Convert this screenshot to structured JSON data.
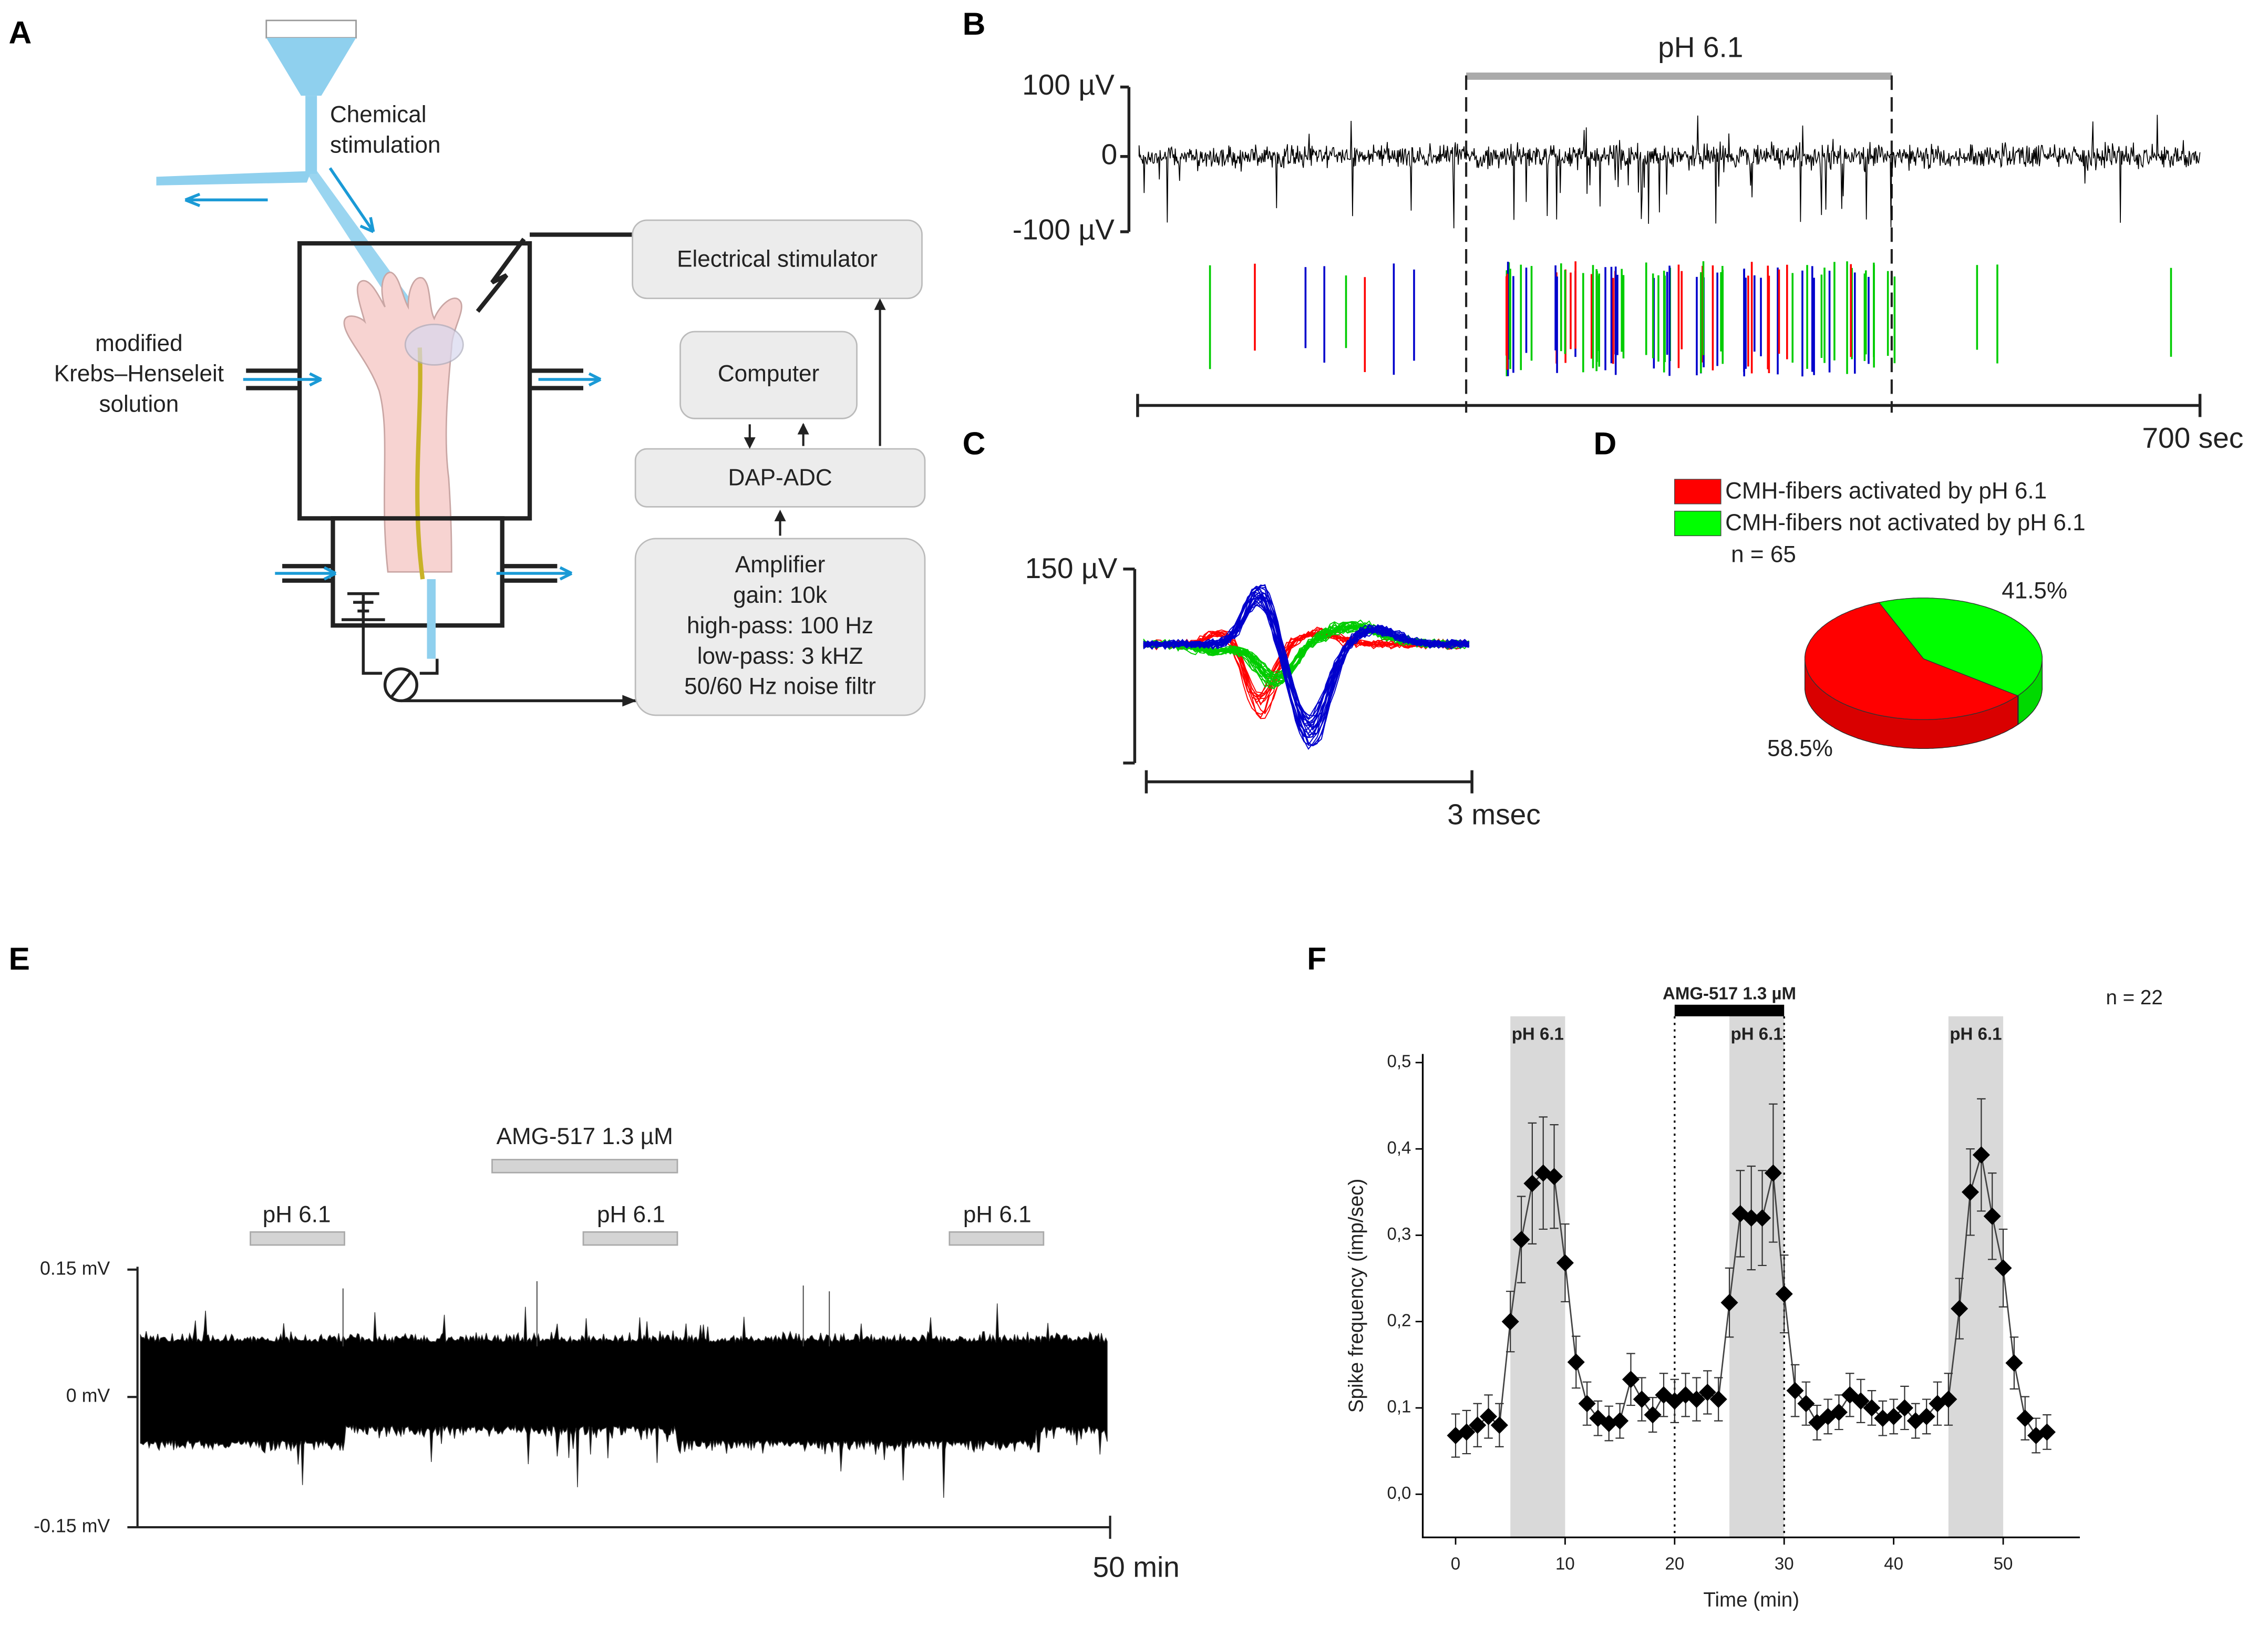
{
  "panel_a": {
    "label": "A",
    "chemical_stimulation": [
      "Chemical",
      "stimulation"
    ],
    "solution": [
      "modified",
      "Krebs–Henseleit",
      "solution"
    ],
    "electrical_stimulator": "Electrical stimulator",
    "computer": "Computer",
    "dap_adc": "DAP-ADC",
    "amplifier": [
      "Amplifier",
      "gain: 10k",
      "high-pass: 100 Hz",
      "low-pass: 3 kHZ",
      "50/60 Hz noise filtr"
    ]
  },
  "panel_b": {
    "label": "B",
    "stimulus": "pH 6.1",
    "y_labels": [
      "100 µV",
      "0",
      "-100 µV"
    ],
    "time_scale": "700 sec"
  },
  "panel_c": {
    "label": "C",
    "amplitude": "150 µV",
    "time_scale": "3 msec"
  },
  "panel_d": {
    "label": "D",
    "chart_data": {
      "type": "pie",
      "categories": [
        "CMH-fibers activated by pH 6.1",
        "CMH-fibers not activated by pH 6.1"
      ],
      "values": [
        58.5,
        41.5
      ],
      "value_labels": [
        "58.5%",
        "41.5%"
      ],
      "colors": [
        "#ff0000",
        "#00ff00"
      ],
      "annotation": "n = 65"
    }
  },
  "panel_e": {
    "label": "E",
    "drug": "AMG-517 1.3 µM",
    "stimuli": [
      "pH 6.1",
      "pH 6.1",
      "pH 6.1"
    ],
    "y_labels": [
      "0.15 mV",
      "0 mV",
      "-0.15 mV"
    ],
    "time_scale": "50 min"
  },
  "panel_f": {
    "label": "F",
    "chart_data": {
      "type": "line",
      "xlabel": "Time (min)",
      "ylabel": "Spike frequency (imp/sec)",
      "annotation": "n = 22",
      "x": [
        0,
        1,
        2,
        3,
        4,
        5,
        6,
        7,
        8,
        9,
        10,
        11,
        12,
        13,
        14,
        15,
        16,
        17,
        18,
        19,
        20,
        21,
        22,
        23,
        24,
        25,
        26,
        27,
        28,
        29,
        30,
        31,
        32,
        33,
        34,
        35,
        36,
        37,
        38,
        39,
        40,
        41,
        42,
        43,
        44,
        45,
        46,
        47,
        48,
        49,
        50,
        51,
        52,
        53,
        54
      ],
      "series": [
        {
          "color": "#000000",
          "values": [
            0.068,
            0.072,
            0.08,
            0.09,
            0.08,
            0.2,
            0.295,
            0.36,
            0.372,
            0.368,
            0.268,
            0.153,
            0.105,
            0.088,
            0.082,
            0.085,
            0.133,
            0.11,
            0.092,
            0.115,
            0.108,
            0.115,
            0.11,
            0.118,
            0.11,
            0.222,
            0.325,
            0.32,
            0.32,
            0.372,
            0.232,
            0.12,
            0.105,
            0.083,
            0.09,
            0.095,
            0.115,
            0.108,
            0.1,
            0.088,
            0.09,
            0.1,
            0.085,
            0.09,
            0.105,
            0.11,
            0.215,
            0.35,
            0.393,
            0.322,
            0.262,
            0.152,
            0.088,
            0.068,
            0.072
          ],
          "errors": [
            0.025,
            0.025,
            0.025,
            0.025,
            0.025,
            0.035,
            0.05,
            0.07,
            0.065,
            0.06,
            0.045,
            0.03,
            0.025,
            0.02,
            0.02,
            0.02,
            0.03,
            0.025,
            0.02,
            0.025,
            0.025,
            0.025,
            0.025,
            0.025,
            0.025,
            0.04,
            0.05,
            0.06,
            0.055,
            0.08,
            0.045,
            0.03,
            0.025,
            0.02,
            0.02,
            0.02,
            0.025,
            0.025,
            0.02,
            0.02,
            0.02,
            0.025,
            0.02,
            0.02,
            0.025,
            0.03,
            0.035,
            0.05,
            0.065,
            0.05,
            0.045,
            0.03,
            0.025,
            0.02,
            0.02
          ]
        }
      ],
      "xlim": [
        -3,
        57
      ],
      "ylim": [
        -0.05,
        0.51
      ],
      "xticks": [
        0,
        10,
        20,
        30,
        40,
        50
      ],
      "yticks": [
        {
          "value": 0,
          "label": "0,0"
        },
        {
          "value": 0.1,
          "label": "0,1"
        },
        {
          "value": 0.2,
          "label": "0,2"
        },
        {
          "value": 0.3,
          "label": "0,3"
        },
        {
          "value": 0.4,
          "label": "0,4"
        },
        {
          "value": 0.5,
          "label": "0,5"
        }
      ],
      "shaded": [
        {
          "range": [
            5,
            10
          ],
          "label": "pH 6.1"
        },
        {
          "range": [
            25,
            30
          ],
          "label": "pH 6.1"
        },
        {
          "range": [
            45,
            50
          ],
          "label": "pH 6.1"
        }
      ],
      "drug": {
        "range": [
          20,
          30
        ],
        "label": "AMG-517 1.3 µM"
      }
    }
  }
}
